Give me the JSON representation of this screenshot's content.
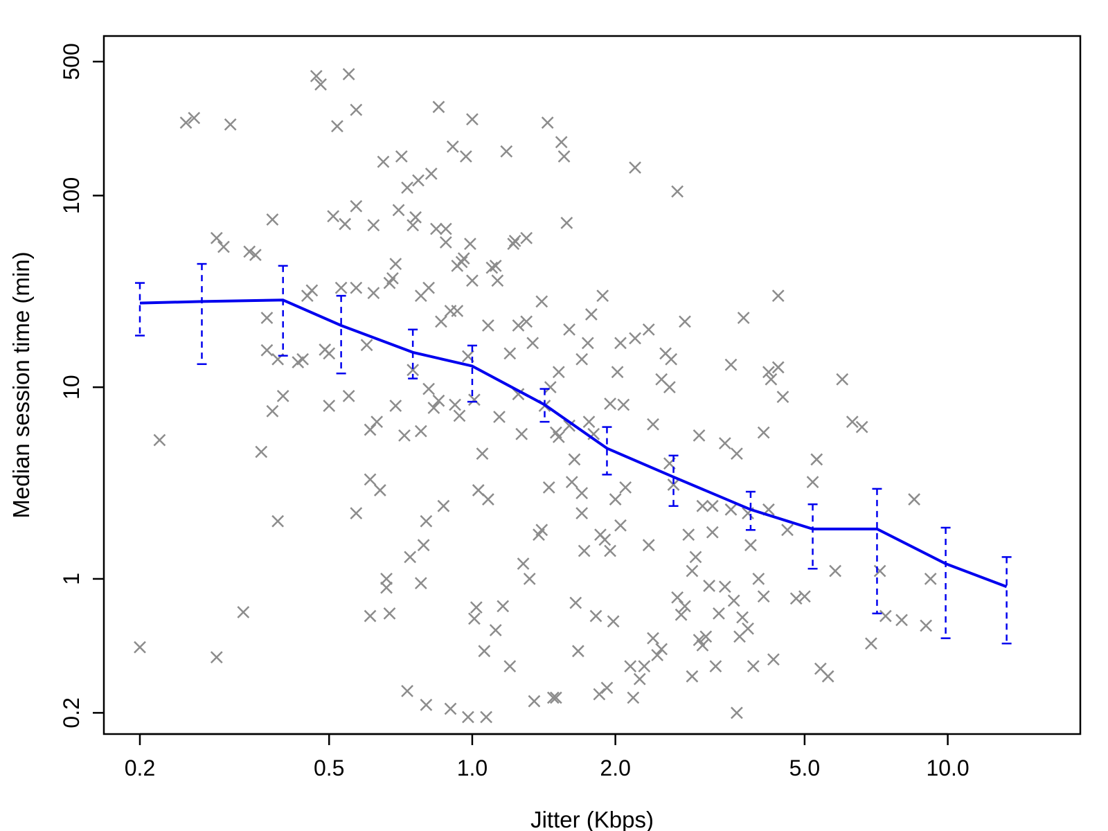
{
  "chart_data": {
    "type": "scatter",
    "title": "",
    "xlabel": "Jitter (Kbps)",
    "ylabel": "Median session time (min)",
    "x_scale": "log",
    "y_scale": "log",
    "xlim": [
      0.168,
      19.0
    ],
    "ylim": [
      0.155,
      680
    ],
    "x_ticks": [
      {
        "value": 0.2,
        "label": "0.2"
      },
      {
        "value": 0.5,
        "label": "0.5"
      },
      {
        "value": 1.0,
        "label": "1.0"
      },
      {
        "value": 2.0,
        "label": "2.0"
      },
      {
        "value": 5.0,
        "label": "5.0"
      },
      {
        "value": 10.0,
        "label": "10.0"
      }
    ],
    "y_ticks": [
      {
        "value": 0.2,
        "label": "0.2"
      },
      {
        "value": 1,
        "label": "1"
      },
      {
        "value": 10,
        "label": "10"
      },
      {
        "value": 100,
        "label": "100"
      },
      {
        "value": 500,
        "label": "500"
      }
    ],
    "grid": false,
    "colors": {
      "points": "#8c8c8c",
      "line": "#0000ee",
      "axes": "#000000"
    },
    "points": [
      [
        0.2,
        0.44
      ],
      [
        0.22,
        5.3
      ],
      [
        0.25,
        240
      ],
      [
        0.26,
        254
      ],
      [
        0.29,
        0.39
      ],
      [
        0.29,
        60
      ],
      [
        0.3,
        54
      ],
      [
        0.31,
        235
      ],
      [
        0.33,
        0.67
      ],
      [
        0.34,
        51
      ],
      [
        0.35,
        49
      ],
      [
        0.36,
        4.6
      ],
      [
        0.37,
        15.6
      ],
      [
        0.38,
        7.5
      ],
      [
        0.38,
        75
      ],
      [
        0.39,
        2.0
      ],
      [
        0.39,
        14
      ],
      [
        0.4,
        9
      ],
      [
        0.44,
        14
      ],
      [
        0.45,
        30
      ],
      [
        0.46,
        32
      ],
      [
        0.47,
        420
      ],
      [
        0.48,
        380
      ],
      [
        0.49,
        15.7
      ],
      [
        0.5,
        15
      ],
      [
        0.5,
        8
      ],
      [
        0.51,
        78
      ],
      [
        0.52,
        230
      ],
      [
        0.53,
        33
      ],
      [
        0.54,
        71
      ],
      [
        0.55,
        430
      ],
      [
        0.55,
        9
      ],
      [
        0.57,
        2.2
      ],
      [
        0.57,
        280
      ],
      [
        0.57,
        88
      ],
      [
        0.6,
        16.6
      ],
      [
        0.61,
        6
      ],
      [
        0.61,
        3.3
      ],
      [
        0.61,
        0.64
      ],
      [
        0.62,
        70
      ],
      [
        0.62,
        31
      ],
      [
        0.63,
        6.6
      ],
      [
        0.64,
        2.9
      ],
      [
        0.65,
        150
      ],
      [
        0.66,
        0.9
      ],
      [
        0.66,
        1.0
      ],
      [
        0.67,
        0.66
      ],
      [
        0.67,
        35
      ],
      [
        0.68,
        37
      ],
      [
        0.69,
        8
      ],
      [
        0.69,
        44
      ],
      [
        0.7,
        84
      ],
      [
        0.71,
        160
      ],
      [
        0.72,
        5.6
      ],
      [
        0.73,
        0.26
      ],
      [
        0.73,
        110
      ],
      [
        0.74,
        1.3
      ],
      [
        0.75,
        70
      ],
      [
        0.76,
        77
      ],
      [
        0.77,
        120
      ],
      [
        0.78,
        30
      ],
      [
        0.78,
        5.9
      ],
      [
        0.78,
        0.95
      ],
      [
        0.79,
        1.5
      ],
      [
        0.8,
        2.0
      ],
      [
        0.8,
        0.22
      ],
      [
        0.81,
        33
      ],
      [
        0.82,
        130
      ],
      [
        0.83,
        7.8
      ],
      [
        0.84,
        67
      ],
      [
        0.85,
        8.5
      ],
      [
        0.85,
        290
      ],
      [
        0.86,
        22
      ],
      [
        0.87,
        2.4
      ],
      [
        0.88,
        67
      ],
      [
        0.9,
        25
      ],
      [
        0.9,
        0.21
      ],
      [
        0.91,
        180
      ],
      [
        0.92,
        8.1
      ],
      [
        0.93,
        25
      ],
      [
        0.94,
        7.1
      ],
      [
        0.95,
        45
      ],
      [
        0.96,
        47
      ],
      [
        0.97,
        160
      ],
      [
        0.98,
        0.19
      ],
      [
        0.99,
        56
      ],
      [
        1.0,
        250
      ],
      [
        1.0,
        36
      ],
      [
        1.01,
        8.6
      ],
      [
        1.01,
        0.62
      ],
      [
        1.02,
        0.71
      ],
      [
        1.03,
        2.9
      ],
      [
        1.05,
        4.5
      ],
      [
        1.06,
        0.42
      ],
      [
        1.07,
        0.19
      ],
      [
        1.08,
        2.6
      ],
      [
        1.1,
        42
      ],
      [
        1.12,
        0.54
      ],
      [
        1.13,
        36
      ],
      [
        1.14,
        7
      ],
      [
        1.16,
        0.72
      ],
      [
        1.18,
        170
      ],
      [
        1.2,
        0.35
      ],
      [
        1.22,
        56
      ],
      [
        1.23,
        58
      ],
      [
        1.25,
        21
      ],
      [
        1.27,
        5.7
      ],
      [
        1.28,
        1.2
      ],
      [
        1.3,
        22
      ],
      [
        1.32,
        1.0
      ],
      [
        1.35,
        0.23
      ],
      [
        1.38,
        1.7
      ],
      [
        1.4,
        1.8
      ],
      [
        1.42,
        8
      ],
      [
        1.44,
        240
      ],
      [
        1.46,
        10
      ],
      [
        1.48,
        0.24
      ],
      [
        1.5,
        0.24
      ],
      [
        1.5,
        5.8
      ],
      [
        1.52,
        5.5
      ],
      [
        1.54,
        190
      ],
      [
        1.56,
        160
      ],
      [
        1.58,
        72
      ],
      [
        1.6,
        6.3
      ],
      [
        1.62,
        3.2
      ],
      [
        1.64,
        4.2
      ],
      [
        1.65,
        0.75
      ],
      [
        1.67,
        0.42
      ],
      [
        1.7,
        2.2
      ],
      [
        1.7,
        2.8
      ],
      [
        1.72,
        1.4
      ],
      [
        1.75,
        17
      ],
      [
        1.76,
        6.6
      ],
      [
        1.8,
        5.7
      ],
      [
        1.82,
        0.64
      ],
      [
        1.85,
        0.25
      ],
      [
        1.86,
        1.7
      ],
      [
        1.9,
        1.6
      ],
      [
        1.92,
        0.27
      ],
      [
        1.95,
        1.4
      ],
      [
        1.98,
        0.6
      ],
      [
        2.0,
        2.6
      ],
      [
        2.02,
        12
      ],
      [
        2.05,
        1.9
      ],
      [
        2.08,
        8.1
      ],
      [
        2.1,
        3
      ],
      [
        2.15,
        0.35
      ],
      [
        2.18,
        0.24
      ],
      [
        2.2,
        140
      ],
      [
        2.25,
        0.3
      ],
      [
        2.3,
        0.35
      ],
      [
        2.35,
        1.5
      ],
      [
        2.4,
        0.49
      ],
      [
        2.45,
        0.4
      ],
      [
        2.5,
        0.43
      ],
      [
        2.55,
        15
      ],
      [
        2.6,
        4
      ],
      [
        2.65,
        3.1
      ],
      [
        2.7,
        105
      ],
      [
        2.75,
        0.65
      ],
      [
        2.8,
        0.72
      ],
      [
        2.85,
        1.7
      ],
      [
        2.9,
        0.31
      ],
      [
        2.95,
        1.3
      ],
      [
        3.0,
        0.48
      ],
      [
        3.05,
        0.45
      ],
      [
        3.1,
        0.5
      ],
      [
        3.15,
        0.92
      ],
      [
        3.2,
        1.75
      ],
      [
        3.25,
        0.35
      ],
      [
        3.3,
        0.66
      ],
      [
        3.4,
        0.91
      ],
      [
        3.5,
        13.1
      ],
      [
        3.55,
        0.77
      ],
      [
        3.6,
        0.2
      ],
      [
        3.65,
        0.5
      ],
      [
        3.7,
        0.63
      ],
      [
        3.8,
        0.55
      ],
      [
        3.85,
        1.5
      ],
      [
        3.9,
        0.35
      ],
      [
        4.0,
        1.0
      ],
      [
        4.1,
        0.81
      ],
      [
        4.2,
        12
      ],
      [
        4.3,
        0.38
      ],
      [
        4.4,
        30
      ],
      [
        4.5,
        8.9
      ],
      [
        4.6,
        1.8
      ],
      [
        4.8,
        0.79
      ],
      [
        5.0,
        0.81
      ],
      [
        5.2,
        3.2
      ],
      [
        5.3,
        4.2
      ],
      [
        5.4,
        0.34
      ],
      [
        5.6,
        0.31
      ],
      [
        5.8,
        1.1
      ],
      [
        6.0,
        11
      ],
      [
        6.3,
        6.6
      ],
      [
        6.6,
        6.2
      ],
      [
        6.9,
        0.46
      ],
      [
        7.2,
        1.1
      ],
      [
        7.4,
        0.64
      ],
      [
        8.0,
        0.61
      ],
      [
        8.5,
        2.6
      ],
      [
        9.0,
        0.57
      ],
      [
        9.2,
        1.0
      ],
      [
        4.1,
        5.8
      ],
      [
        3.2,
        2.4
      ],
      [
        2.4,
        6.4
      ],
      [
        1.95,
        8.2
      ],
      [
        1.45,
        3.0
      ],
      [
        1.25,
        9.2
      ],
      [
        0.98,
        14.5
      ],
      [
        0.75,
        12.3
      ],
      [
        0.57,
        33
      ],
      [
        0.43,
        13.5
      ],
      [
        0.37,
        23
      ],
      [
        2.6,
        10
      ],
      [
        3.0,
        5.6
      ],
      [
        3.4,
        5.1
      ],
      [
        3.8,
        2.2
      ],
      [
        4.4,
        12.7
      ],
      [
        4.2,
        2.3
      ],
      [
        2.2,
        18
      ],
      [
        2.8,
        22
      ],
      [
        1.88,
        30
      ],
      [
        1.6,
        20
      ],
      [
        1.4,
        28
      ],
      [
        1.7,
        14
      ],
      [
        2.5,
        11
      ],
      [
        3.5,
        2.3
      ],
      [
        2.9,
        1.1
      ],
      [
        2.7,
        0.8
      ],
      [
        3.05,
        2.4
      ],
      [
        3.6,
        4.5
      ],
      [
        0.88,
        57
      ],
      [
        0.93,
        43
      ],
      [
        1.08,
        21
      ],
      [
        1.2,
        15
      ],
      [
        1.34,
        17
      ],
      [
        1.52,
        12
      ],
      [
        1.78,
        24
      ],
      [
        2.05,
        17
      ],
      [
        2.35,
        20
      ],
      [
        2.62,
        14
      ],
      [
        3.72,
        23
      ],
      [
        4.25,
        11
      ],
      [
        1.12,
        43
      ],
      [
        1.3,
        60
      ],
      [
        0.81,
        9.8
      ]
    ],
    "series": [
      {
        "type": "line",
        "x": [
          0.2,
          0.27,
          0.4,
          0.53,
          0.75,
          1.0,
          1.42,
          1.92,
          2.65,
          3.85,
          5.2,
          7.1,
          9.9,
          13.3
        ],
        "y": [
          27.5,
          28,
          28.5,
          21,
          15.2,
          12.9,
          8.1,
          4.8,
          3.4,
          2.3,
          1.82,
          1.82,
          1.2,
          0.91
        ],
        "lower": [
          18.6,
          13.2,
          14.6,
          11.8,
          11.1,
          8.4,
          6.6,
          3.5,
          2.4,
          1.8,
          1.13,
          0.66,
          0.49,
          0.46
        ],
        "upper": [
          35,
          44,
          43,
          30,
          20,
          16.5,
          9.8,
          6.2,
          4.4,
          2.85,
          2.45,
          2.95,
          1.85,
          1.3
        ]
      }
    ]
  }
}
